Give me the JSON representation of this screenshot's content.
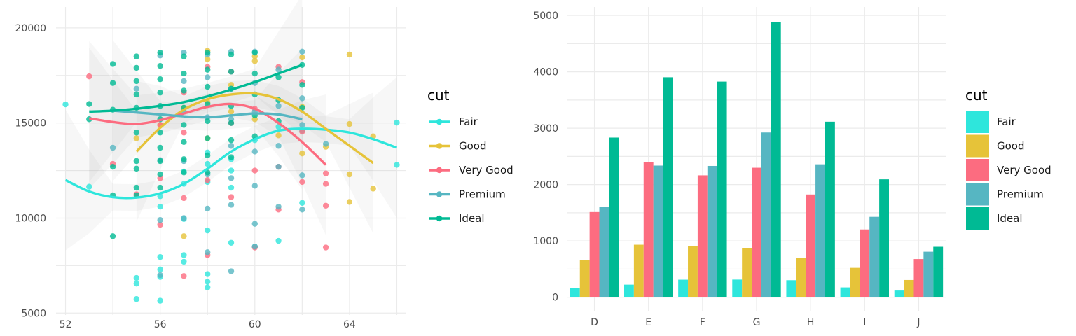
{
  "colors": {
    "Fair": "#2ee6dc",
    "Good": "#e6c339",
    "Very Good": "#fc6c80",
    "Premium": "#56b6c2",
    "Ideal": "#00ba94"
  },
  "chart_data": [
    {
      "type": "scatter",
      "xlabel": "",
      "ylabel": "",
      "xlim": [
        51.6,
        66.4
      ],
      "ylim": [
        4900,
        21100
      ],
      "x_ticks": [
        "52",
        "56",
        "60",
        "64"
      ],
      "y_ticks": [
        "5000",
        "10000",
        "15000",
        "20000"
      ],
      "legend_title": "cut",
      "grid": true,
      "legend_position": "right",
      "smooth": "loess with confidence band",
      "series": [
        {
          "name": "Fair",
          "points": [
            [
              52,
              15980
            ],
            [
              53,
              11650
            ],
            [
              55,
              6850
            ],
            [
              55,
              6550
            ],
            [
              55,
              5740
            ],
            [
              56,
              7300
            ],
            [
              56,
              6900
            ],
            [
              56,
              5650
            ],
            [
              56,
              10600
            ],
            [
              56,
              11150
            ],
            [
              56,
              7950
            ],
            [
              57,
              8050
            ],
            [
              57,
              7700
            ],
            [
              57,
              9950
            ],
            [
              57,
              11800
            ],
            [
              57,
              12450
            ],
            [
              58,
              7050
            ],
            [
              58,
              6650
            ],
            [
              58,
              6350
            ],
            [
              58,
              9350
            ],
            [
              58,
              11900
            ],
            [
              58,
              12850
            ],
            [
              58,
              13450
            ],
            [
              59,
              8700
            ],
            [
              59,
              11600
            ],
            [
              59,
              12500
            ],
            [
              59,
              13100
            ],
            [
              60,
              8500
            ],
            [
              60,
              14100
            ],
            [
              61,
              8800
            ],
            [
              61,
              14800
            ],
            [
              62,
              10800
            ],
            [
              62,
              14600
            ],
            [
              66,
              15020
            ],
            [
              66,
              12800
            ]
          ],
          "smooth": [
            [
              52,
              12000
            ],
            [
              53,
              11400
            ],
            [
              54,
              11100
            ],
            [
              55,
              11080
            ],
            [
              56,
              11300
            ],
            [
              57,
              11800
            ],
            [
              58,
              12600
            ],
            [
              59,
              13500
            ],
            [
              60,
              14150
            ],
            [
              61,
              14600
            ],
            [
              62,
              14700
            ],
            [
              63,
              14650
            ],
            [
              64,
              14500
            ],
            [
              65,
              14150
            ],
            [
              66,
              13700
            ]
          ]
        },
        {
          "name": "Good",
          "points": [
            [
              55,
              14200
            ],
            [
              56,
              14900
            ],
            [
              57,
              9050
            ],
            [
              57,
              15800
            ],
            [
              58,
              18800
            ],
            [
              58,
              18350
            ],
            [
              58,
              16100
            ],
            [
              58,
              14200
            ],
            [
              59,
              17000
            ],
            [
              59,
              15600
            ],
            [
              60,
              18500
            ],
            [
              60,
              18250
            ],
            [
              60,
              15200
            ],
            [
              61,
              14350
            ],
            [
              62,
              18450
            ],
            [
              62,
              15850
            ],
            [
              62,
              13400
            ],
            [
              63,
              13750
            ],
            [
              64,
              18600
            ],
            [
              64,
              14950
            ],
            [
              64,
              12300
            ],
            [
              64,
              10850
            ],
            [
              65,
              14300
            ],
            [
              65,
              11550
            ]
          ],
          "smooth": [
            [
              55,
              13500
            ],
            [
              56,
              14750
            ],
            [
              57,
              15700
            ],
            [
              58,
              16250
            ],
            [
              59,
              16500
            ],
            [
              60,
              16550
            ],
            [
              61,
              16250
            ],
            [
              62,
              15600
            ],
            [
              63,
              14700
            ],
            [
              64,
              13800
            ],
            [
              65,
              12900
            ]
          ]
        },
        {
          "name": "Very Good",
          "points": [
            [
              53,
              17450
            ],
            [
              54,
              12850
            ],
            [
              55,
              11250
            ],
            [
              56,
              9650
            ],
            [
              56,
              12100
            ],
            [
              56,
              14900
            ],
            [
              57,
              6950
            ],
            [
              57,
              11050
            ],
            [
              57,
              14500
            ],
            [
              57,
              16600
            ],
            [
              58,
              17950
            ],
            [
              58,
              12000
            ],
            [
              58,
              8050
            ],
            [
              59,
              17700
            ],
            [
              59,
              15000
            ],
            [
              59,
              11100
            ],
            [
              60,
              15750
            ],
            [
              60,
              12500
            ],
            [
              60,
              8450
            ],
            [
              61,
              17950
            ],
            [
              61,
              12700
            ],
            [
              61,
              10450
            ],
            [
              62,
              17150
            ],
            [
              62,
              14550
            ],
            [
              62,
              11900
            ],
            [
              63,
              12350
            ],
            [
              63,
              11800
            ],
            [
              63,
              10650
            ],
            [
              63,
              8450
            ]
          ],
          "smooth": [
            [
              53,
              15250
            ],
            [
              54,
              15050
            ],
            [
              55,
              14950
            ],
            [
              56,
              15150
            ],
            [
              57,
              15500
            ],
            [
              58,
              15850
            ],
            [
              59,
              16000
            ],
            [
              60,
              15750
            ],
            [
              61,
              15000
            ],
            [
              62,
              14000
            ],
            [
              63,
              12800
            ]
          ]
        },
        {
          "name": "Premium",
          "points": [
            [
              54,
              13700
            ],
            [
              55,
              16800
            ],
            [
              56,
              18550
            ],
            [
              56,
              13050
            ],
            [
              56,
              9900
            ],
            [
              56,
              7000
            ],
            [
              57,
              18700
            ],
            [
              57,
              17200
            ],
            [
              57,
              15600
            ],
            [
              57,
              13000
            ],
            [
              57,
              10000
            ],
            [
              58,
              18600
            ],
            [
              58,
              17400
            ],
            [
              58,
              15300
            ],
            [
              58,
              12300
            ],
            [
              58,
              10500
            ],
            [
              58,
              8200
            ],
            [
              59,
              18750
            ],
            [
              59,
              16800
            ],
            [
              59,
              15200
            ],
            [
              59,
              13800
            ],
            [
              59,
              12100
            ],
            [
              59,
              10700
            ],
            [
              59,
              7200
            ],
            [
              60,
              18750
            ],
            [
              60,
              17100
            ],
            [
              60,
              15600
            ],
            [
              60,
              13500
            ],
            [
              60,
              11700
            ],
            [
              60,
              9700
            ],
            [
              60,
              8500
            ],
            [
              61,
              17800
            ],
            [
              61,
              15900
            ],
            [
              61,
              13800
            ],
            [
              61,
              12700
            ],
            [
              61,
              10600
            ],
            [
              62,
              18750
            ],
            [
              62,
              16300
            ],
            [
              62,
              14900
            ],
            [
              62,
              12250
            ],
            [
              62,
              10450
            ],
            [
              63,
              13900
            ]
          ],
          "smooth": [
            [
              54,
              15650
            ],
            [
              55,
              15550
            ],
            [
              56,
              15450
            ],
            [
              57,
              15350
            ],
            [
              58,
              15300
            ],
            [
              59,
              15400
            ],
            [
              60,
              15500
            ],
            [
              61,
              15450
            ],
            [
              62,
              15200
            ]
          ]
        },
        {
          "name": "Ideal",
          "points": [
            [
              53,
              15200
            ],
            [
              53,
              16000
            ],
            [
              54,
              18100
            ],
            [
              54,
              17100
            ],
            [
              54,
              15700
            ],
            [
              54,
              12700
            ],
            [
              54,
              11200
            ],
            [
              54,
              9050
            ],
            [
              55,
              18500
            ],
            [
              55,
              17900
            ],
            [
              55,
              17200
            ],
            [
              55,
              16500
            ],
            [
              55,
              15800
            ],
            [
              55,
              14500
            ],
            [
              55,
              13000
            ],
            [
              55,
              12600
            ],
            [
              55,
              11600
            ],
            [
              55,
              11200
            ],
            [
              56,
              18700
            ],
            [
              56,
              18000
            ],
            [
              56,
              17300
            ],
            [
              56,
              16600
            ],
            [
              56,
              15900
            ],
            [
              56,
              15200
            ],
            [
              56,
              14500
            ],
            [
              56,
              13700
            ],
            [
              56,
              13000
            ],
            [
              56,
              12300
            ],
            [
              56,
              11600
            ],
            [
              57,
              18500
            ],
            [
              57,
              17600
            ],
            [
              57,
              16700
            ],
            [
              57,
              15800
            ],
            [
              57,
              14900
            ],
            [
              57,
              14000
            ],
            [
              57,
              13100
            ],
            [
              57,
              12400
            ],
            [
              58,
              18700
            ],
            [
              58,
              17800
            ],
            [
              58,
              16900
            ],
            [
              58,
              16000
            ],
            [
              58,
              15100
            ],
            [
              58,
              14200
            ],
            [
              58,
              13300
            ],
            [
              58,
              12400
            ],
            [
              59,
              18600
            ],
            [
              59,
              17700
            ],
            [
              59,
              16800
            ],
            [
              59,
              15900
            ],
            [
              59,
              15000
            ],
            [
              59,
              14100
            ],
            [
              59,
              13200
            ],
            [
              60,
              18700
            ],
            [
              60,
              17600
            ],
            [
              60,
              16500
            ],
            [
              60,
              15400
            ],
            [
              60,
              14300
            ],
            [
              61,
              17400
            ],
            [
              61,
              16200
            ],
            [
              61,
              15100
            ],
            [
              62,
              18050
            ],
            [
              62,
              17000
            ],
            [
              62,
              15800
            ]
          ],
          "smooth": [
            [
              53,
              15600
            ],
            [
              54,
              15650
            ],
            [
              55,
              15750
            ],
            [
              56,
              15900
            ],
            [
              57,
              16100
            ],
            [
              58,
              16400
            ],
            [
              59,
              16750
            ],
            [
              60,
              17150
            ],
            [
              61,
              17600
            ],
            [
              62,
              18050
            ]
          ]
        }
      ]
    },
    {
      "type": "bar",
      "xlabel": "",
      "ylabel": "",
      "ylim": [
        -240,
        5150
      ],
      "y_ticks": [
        "0",
        "1000",
        "2000",
        "3000",
        "4000",
        "5000"
      ],
      "categories": [
        "D",
        "E",
        "F",
        "G",
        "H",
        "I",
        "J"
      ],
      "legend_title": "cut",
      "grid": true,
      "legend_position": "right",
      "series": [
        {
          "name": "Fair",
          "values": [
            163,
            224,
            312,
            314,
            303,
            175,
            119
          ]
        },
        {
          "name": "Good",
          "values": [
            662,
            933,
            909,
            871,
            702,
            522,
            307
          ]
        },
        {
          "name": "Very Good",
          "values": [
            1513,
            2400,
            2164,
            2299,
            1824,
            1204,
            678
          ]
        },
        {
          "name": "Premium",
          "values": [
            1603,
            2337,
            2331,
            2924,
            2360,
            1428,
            808
          ]
        },
        {
          "name": "Ideal",
          "values": [
            2834,
            3903,
            3826,
            4884,
            3115,
            2093,
            896
          ]
        }
      ]
    }
  ]
}
